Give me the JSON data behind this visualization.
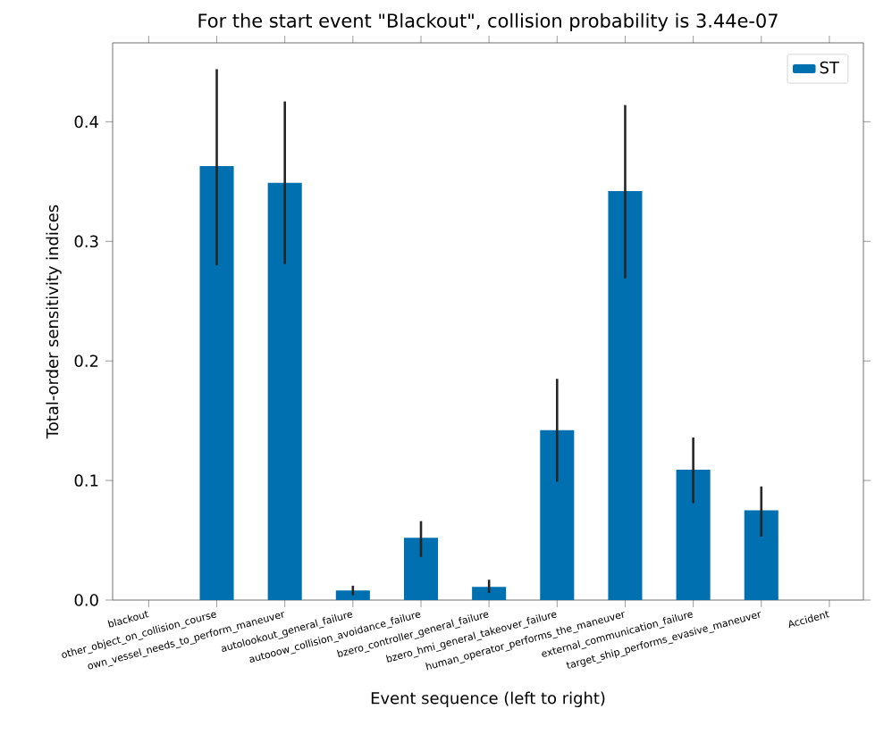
{
  "chart_data": {
    "type": "bar",
    "title": "For the start event \"Blackout\", collision probability is 3.44e-07",
    "xlabel": "Event sequence (left to right)",
    "ylabel": "Total-order sensitivity indices",
    "categories": [
      "blackout",
      "other_object_on_collision_course",
      "own_vessel_needs_to_perform_maneuver",
      "autolookout_general_failure",
      "autooow_collision_avoidance_failure",
      "bzero_controller_general_failure",
      "bzero_hmi_general_takeover_failure",
      "human_operator_performs_the_maneuver",
      "external_communication_failure",
      "target_ship_performs_evasive_maneuver",
      "Accident"
    ],
    "series": [
      {
        "name": "ST",
        "color": "#0070b0",
        "values": [
          0,
          0.363,
          0.349,
          0.008,
          0.052,
          0.011,
          0.142,
          0.342,
          0.109,
          0.075,
          0
        ],
        "errors": [
          null,
          [
            0.28,
            0.444
          ],
          [
            0.281,
            0.417
          ],
          [
            0.004,
            0.012
          ],
          [
            0.036,
            0.066
          ],
          [
            0.006,
            0.017
          ],
          [
            0.099,
            0.185
          ],
          [
            0.269,
            0.414
          ],
          [
            0.081,
            0.136
          ],
          [
            0.053,
            0.095
          ],
          null
        ]
      }
    ],
    "ylim": [
      0,
      0.466
    ],
    "yticks": [
      {
        "value": 0,
        "label": "0.0"
      },
      {
        "value": 0.1,
        "label": "0.1"
      },
      {
        "value": 0.2,
        "label": "0.2"
      },
      {
        "value": 0.3,
        "label": "0.3"
      },
      {
        "value": 0.4,
        "label": "0.4"
      }
    ],
    "legend": "top right"
  }
}
